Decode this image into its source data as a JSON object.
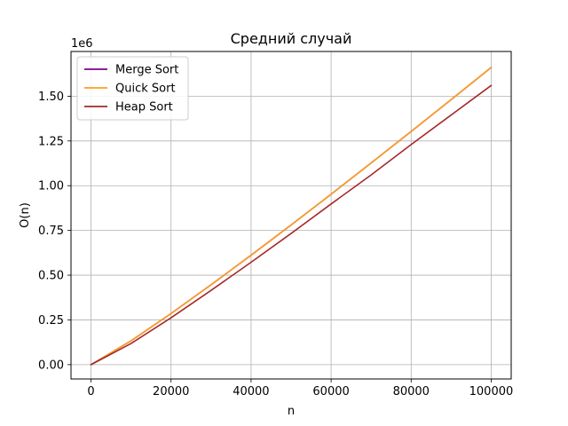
{
  "chart_data": {
    "type": "line",
    "title": "Средний случай",
    "xlabel": "n",
    "ylabel": "O(n)",
    "offset_text": "1e6",
    "xlim": [
      -5000,
      105000
    ],
    "ylim": [
      -80000,
      1750000
    ],
    "x_ticks": [
      0,
      20000,
      40000,
      60000,
      80000,
      100000
    ],
    "x_tick_labels": [
      "0",
      "20000",
      "40000",
      "60000",
      "80000",
      "100000"
    ],
    "y_ticks": [
      0,
      250000,
      500000,
      750000,
      1000000,
      1250000,
      1500000
    ],
    "y_tick_labels": [
      "0.00",
      "0.25",
      "0.50",
      "0.75",
      "1.00",
      "1.25",
      "1.50"
    ],
    "grid": true,
    "legend_position": "upper-left",
    "x": [
      0,
      10000,
      20000,
      30000,
      40000,
      50000,
      60000,
      70000,
      80000,
      90000,
      100000
    ],
    "series": [
      {
        "name": "Merge Sort",
        "color": "#800080",
        "values": [
          0,
          132877,
          285754,
          446180,
          611508,
          780482,
          952360,
          1126700,
          1303017,
          1481179,
          1660964
        ]
      },
      {
        "name": "Quick Sort",
        "color": "#ff9f1c",
        "values": [
          0,
          132877,
          285754,
          446180,
          611508,
          780482,
          952360,
          1126700,
          1303017,
          1481179,
          1660964
        ]
      },
      {
        "name": "Heap Sort",
        "color": "#a52a2a",
        "values": [
          0,
          118000,
          262000,
          415000,
          572000,
          733000,
          898000,
          1060000,
          1230000,
          1395000,
          1560000
        ]
      }
    ]
  }
}
